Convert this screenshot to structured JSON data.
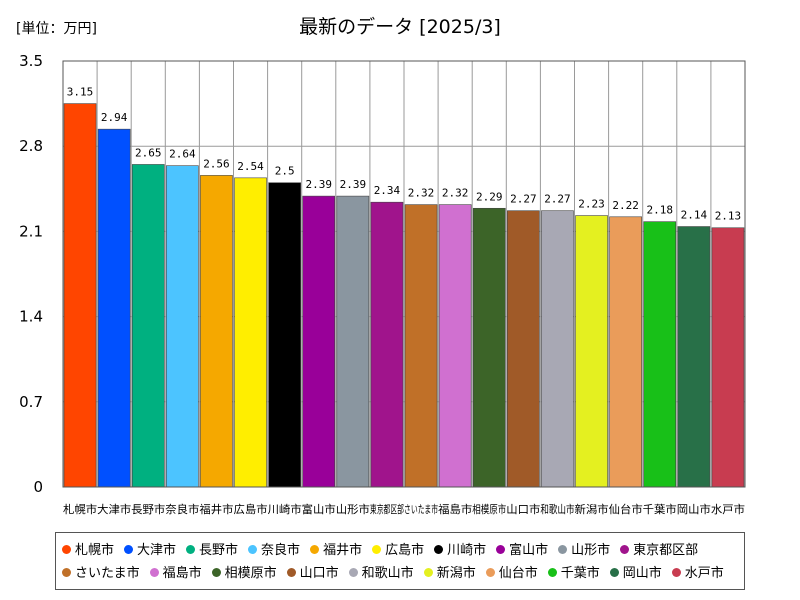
{
  "unit_label": "[単位：万円]",
  "title": "最新のデータ [2025/3]",
  "chart_data": {
    "type": "bar",
    "title": "最新のデータ [2025/3]",
    "unit": "[単位：万円]",
    "ylim": [
      0,
      3.5
    ],
    "yticks": [
      "0",
      "0.7",
      "1.4",
      "2.1",
      "2.8",
      "3.5"
    ],
    "grid": true,
    "legend_position": "bottom",
    "categories": [
      "札幌市",
      "大津市",
      "長野市",
      "奈良市",
      "福井市",
      "広島市",
      "川崎市",
      "富山市",
      "山形市",
      "東京都区部",
      "さいたま市",
      "福島市",
      "相模原市",
      "山口市",
      "和歌山市",
      "新潟市",
      "仙台市",
      "千葉市",
      "岡山市",
      "水戸市"
    ],
    "values": [
      3.15,
      2.94,
      2.65,
      2.64,
      2.56,
      2.54,
      2.5,
      2.39,
      2.39,
      2.34,
      2.32,
      2.32,
      2.29,
      2.27,
      2.27,
      2.23,
      2.22,
      2.18,
      2.14,
      2.13
    ],
    "value_labels": [
      "3.15",
      "2.94",
      "2.65",
      "2.64",
      "2.56",
      "2.54",
      "2.5",
      "2.39",
      "2.39",
      "2.34",
      "2.32",
      "2.32",
      "2.29",
      "2.27",
      "2.27",
      "2.23",
      "2.22",
      "2.18",
      "2.14",
      "2.13"
    ],
    "colors": [
      "#ff4500",
      "#0050ff",
      "#00b080",
      "#4cc4ff",
      "#f5a800",
      "#ffee00",
      "#000000",
      "#990099",
      "#8a96a0",
      "#a0148c",
      "#c07028",
      "#d070d0",
      "#3c6428",
      "#a05a28",
      "#a8a8b4",
      "#e4f020",
      "#ea9c5a",
      "#18c018",
      "#287048",
      "#c83c50"
    ]
  }
}
